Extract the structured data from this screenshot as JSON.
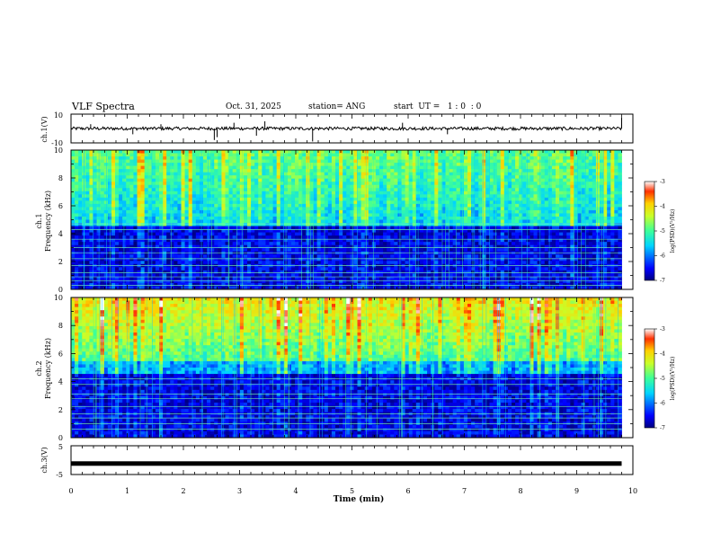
{
  "header": {
    "title": "VLF Spectra",
    "date": "Oct. 31, 2025",
    "station": "station= ANG",
    "start": "start  UT =   1 : 0  : 0"
  },
  "colorbar": {
    "label": "log(PSD)(V²/Hz)",
    "ticks": [
      "-3",
      "-4",
      "-5",
      "-6",
      "-7"
    ],
    "range": [
      -7,
      -3
    ]
  },
  "chart_data": [
    {
      "type": "line",
      "name": "ch.1 waveform",
      "ylabel": "ch.1(V)",
      "ylim": [
        -10,
        10
      ],
      "yticks": [
        "10",
        "-10"
      ],
      "xlim": [
        0,
        10
      ],
      "baseline": 0
    },
    {
      "type": "heatmap",
      "name": "ch.1 spectrogram",
      "ylabel": "ch.1\nFrequency (kHz)",
      "ylabel_line1": "ch.1",
      "ylabel_line2": "Frequency (kHz)",
      "ylim": [
        0,
        10
      ],
      "yticks": [
        "0",
        "2",
        "4",
        "6",
        "8",
        "10"
      ],
      "xlim": [
        0,
        10
      ],
      "data_end_min": 9.8,
      "zlabel": "log(PSD)(V²/Hz)",
      "zrange": [
        -7,
        -3
      ]
    },
    {
      "type": "heatmap",
      "name": "ch.2 spectrogram",
      "ylabel_line1": "ch.2",
      "ylabel_line2": "Frequency (kHz)",
      "ylim": [
        0,
        10
      ],
      "yticks": [
        "0",
        "2",
        "4",
        "6",
        "8",
        "10"
      ],
      "xlim": [
        0,
        10
      ],
      "data_end_min": 9.8,
      "zlabel": "log(PSD)(V²/Hz)",
      "zrange": [
        -7,
        -3
      ]
    },
    {
      "type": "line",
      "name": "ch.3 waveform",
      "ylabel": "ch.3(V)",
      "ylim": [
        -5,
        5
      ],
      "yticks": [
        "5",
        "-5"
      ],
      "xlim": [
        0,
        10
      ],
      "baseline": -1.2
    }
  ],
  "xaxis": {
    "label": "Time  (min)",
    "ticks": [
      "0",
      "1",
      "2",
      "3",
      "4",
      "5",
      "6",
      "7",
      "8",
      "9",
      "10"
    ]
  }
}
